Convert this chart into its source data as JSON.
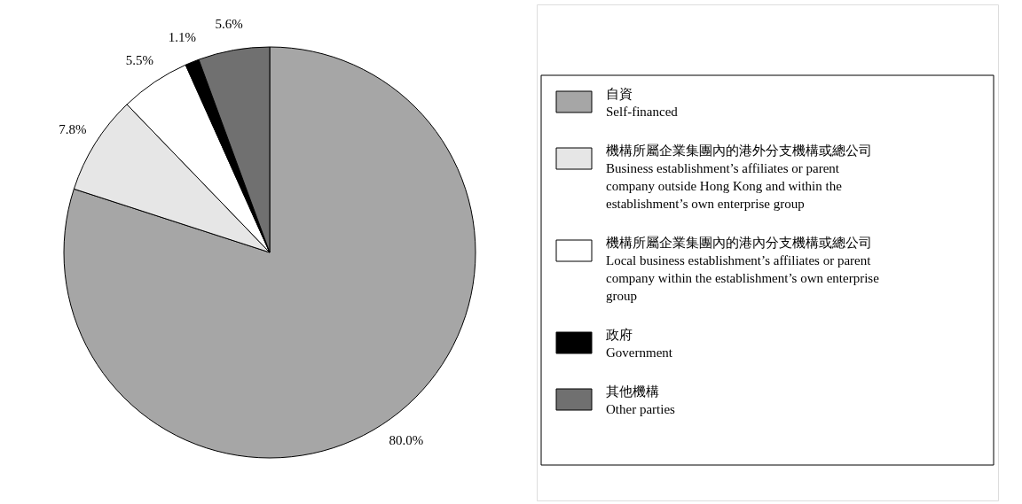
{
  "chart_data": {
    "type": "pie",
    "categories": [
      "自資\nSelf-financed",
      "機構所屬企業集團內的港外分支機構或總公司\nBusiness establishment’s affiliates or parent company outside Hong Kong and within the establishment’s own enterprise group",
      "機構所屬企業集團內的港內分支機構或總公司\nLocal business establishment’s affiliates or parent company within the establishment’s own enterprise group",
      "政府\nGovernment",
      "其他機構\nOther parties"
    ],
    "values": [
      80.0,
      7.8,
      5.5,
      1.1,
      5.6
    ],
    "value_labels": [
      "80.0%",
      "7.8%",
      "5.5%",
      "1.1%",
      "5.6%"
    ],
    "colors": [
      "#a6a6a6",
      "#e6e6e6",
      "#ffffff",
      "#000000",
      "#707070"
    ],
    "legend": "right"
  }
}
